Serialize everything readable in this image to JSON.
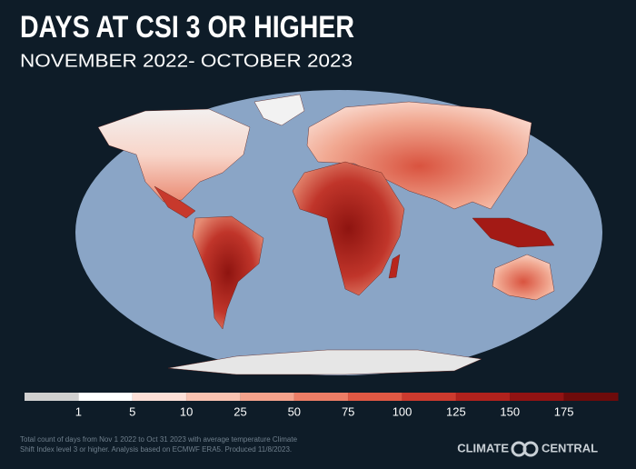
{
  "header": {
    "title": "DAYS AT CSI 3 OR HIGHER",
    "subtitle": "NOVEMBER 2022- OCTOBER 2023"
  },
  "legend": {
    "colors": [
      "#d0d0d0",
      "#ffffff",
      "#fde0d8",
      "#f9c3b2",
      "#f4a28c",
      "#ec7d66",
      "#e05844",
      "#cc3a2e",
      "#b1221d",
      "#921313",
      "#6e0b0b"
    ],
    "ticks": [
      1,
      5,
      10,
      25,
      50,
      75,
      100,
      125,
      150,
      175
    ]
  },
  "footnote": [
    "Total count of days from Nov 1 2022 to Oct 31 2023 with average temperature Climate",
    "Shift Index level 3 or higher. Analysis based on ECMWF ERA5. Produced 11/8/2023."
  ],
  "brand": {
    "left": "CLIMATE",
    "right": "CENTRAL"
  }
}
